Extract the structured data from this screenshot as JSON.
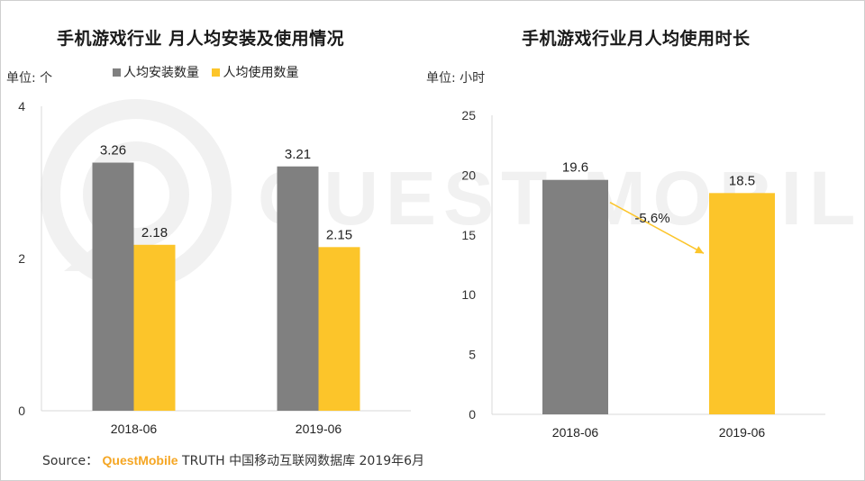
{
  "titles": {
    "left": "手机游戏行业 月人均安装及使用情况",
    "right": "手机游戏行业月人均使用时长"
  },
  "units": {
    "left": "单位: 个",
    "right": "单位: 小时"
  },
  "legend": {
    "items": [
      {
        "label": "人均安装数量",
        "color": "#808080"
      },
      {
        "label": "人均使用数量",
        "color": "#fcc52a"
      }
    ]
  },
  "watermark": {
    "text": "QUEST MOBILE"
  },
  "source": {
    "prefix": "Source：",
    "brand": "QuestMobile",
    "suffix": "TRUTH 中国移动互联网数据库 2019年6月"
  },
  "colors": {
    "gray": "#808080",
    "yellow": "#fcc52a",
    "arrow": "#fcc52a",
    "brand": "#f5a623"
  },
  "chart_data": [
    {
      "type": "bar",
      "title": "手机游戏行业 月人均安装及使用情况",
      "ylabel": "单位: 个",
      "categories": [
        "2018-06",
        "2019-06"
      ],
      "series": [
        {
          "name": "人均安装数量",
          "values": [
            3.26,
            3.21
          ],
          "labels": [
            "3.26",
            "3.21"
          ],
          "color": "#808080"
        },
        {
          "name": "人均使用数量",
          "values": [
            2.18,
            2.15
          ],
          "labels": [
            "2.18",
            "2.15"
          ],
          "color": "#fcc52a"
        }
      ],
      "ylim": [
        0,
        4
      ],
      "yticks": [
        0,
        2,
        4
      ],
      "ytick_labels": [
        "0",
        "2",
        "4"
      ],
      "legend": "top"
    },
    {
      "type": "bar",
      "title": "手机游戏行业月人均使用时长",
      "ylabel": "单位: 小时",
      "categories": [
        "2018-06",
        "2019-06"
      ],
      "values": [
        19.6,
        18.5
      ],
      "labels": [
        "19.6",
        "18.5"
      ],
      "colors": [
        "#808080",
        "#fcc52a"
      ],
      "ylim": [
        0,
        25
      ],
      "yticks": [
        0,
        5,
        10,
        15,
        20,
        25
      ],
      "ytick_labels": [
        "0",
        "5",
        "10",
        "15",
        "20",
        "25"
      ],
      "annotation": "-5.6%"
    }
  ]
}
